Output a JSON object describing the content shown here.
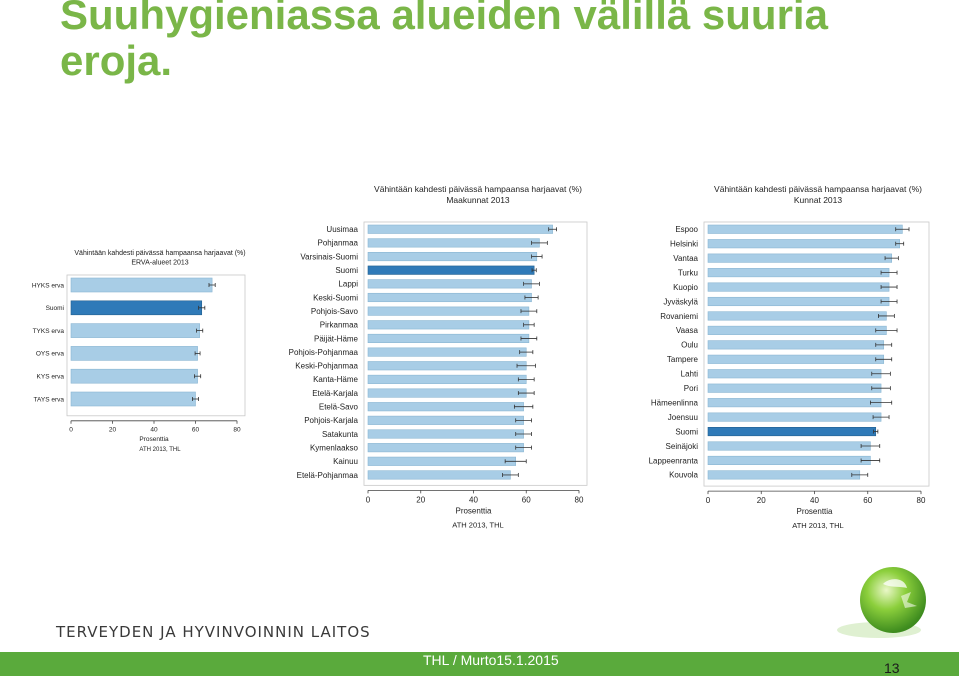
{
  "slide": {
    "title": "Suuhygieniassa alueiden välillä suuria eroja.",
    "org_name": "TERVEYDEN JA HYVINVOINNIN LAITOS",
    "footer": "THL / Murto15.1.2015",
    "page_number": "13"
  },
  "colors": {
    "title": "#7ab648",
    "bar": "#a8cde6",
    "bar_highlight": "#2f7ab8",
    "footer_bar": "#5aaa3c"
  },
  "chart_data": [
    {
      "type": "bar",
      "orientation": "horizontal",
      "title": "Vähintään kahdesti päivässä hampaansa harjaavat (%)",
      "subtitle": "ERVA-alueet 2013",
      "categories": [
        "HYKS erva",
        "Suomi",
        "TYKS erva",
        "OYS erva",
        "KYS erva",
        "TAYS erva"
      ],
      "values": [
        68,
        63,
        62,
        61,
        61,
        60
      ],
      "error": [
        1.5,
        1.5,
        1.5,
        1.2,
        1.5,
        1.5
      ],
      "highlight": "Suomi",
      "xlabel": "Prosenttia",
      "xlim": [
        0,
        80
      ],
      "xticks": [
        0,
        20,
        40,
        60,
        80
      ],
      "source": "ATH 2013, THL"
    },
    {
      "type": "bar",
      "orientation": "horizontal",
      "title": "Vähintään kahdesti päivässä hampaansa harjaavat (%)",
      "subtitle": "Maakunnat 2013",
      "categories": [
        "Uusimaa",
        "Pohjanmaa",
        "Varsinais-Suomi",
        "Suomi",
        "Lappi",
        "Keski-Suomi",
        "Pohjois-Savo",
        "Pirkanmaa",
        "Päijät-Häme",
        "Pohjois-Pohjanmaa",
        "Keski-Pohjanmaa",
        "Kanta-Häme",
        "Etelä-Karjala",
        "Etelä-Savo",
        "Pohjois-Karjala",
        "Satakunta",
        "Kymenlaakso",
        "Kainuu",
        "Etelä-Pohjanmaa"
      ],
      "values": [
        70,
        65,
        64,
        63,
        62,
        62,
        61,
        61,
        61,
        60,
        60,
        60,
        60,
        59,
        59,
        59,
        59,
        56,
        54
      ],
      "error": [
        1.5,
        3,
        2,
        0.8,
        3,
        2.5,
        3,
        2,
        3,
        2.5,
        3.5,
        3,
        3,
        3.5,
        3,
        3,
        3,
        4,
        3
      ],
      "highlight": "Suomi",
      "xlabel": "Prosenttia",
      "xlim": [
        0,
        80
      ],
      "xticks": [
        0,
        20,
        40,
        60,
        80
      ],
      "source": "ATH 2013, THL"
    },
    {
      "type": "bar",
      "orientation": "horizontal",
      "title": "Vähintään kahdesti päivässä hampaansa harjaavat (%)",
      "subtitle": "Kunnat 2013",
      "categories": [
        "Espoo",
        "Helsinki",
        "Vantaa",
        "Turku",
        "Kuopio",
        "Jyväskylä",
        "Rovaniemi",
        "Vaasa",
        "Oulu",
        "Tampere",
        "Lahti",
        "Pori",
        "Hämeenlinna",
        "Joensuu",
        "Suomi",
        "Seinäjoki",
        "Lappeenranta",
        "Kouvola"
      ],
      "values": [
        73,
        72,
        69,
        68,
        68,
        68,
        67,
        67,
        66,
        66,
        65,
        65,
        65,
        65,
        63,
        61,
        61,
        57
      ],
      "error": [
        2.5,
        1.5,
        2.5,
        3,
        3,
        3,
        3,
        4,
        3,
        3,
        3.5,
        3.5,
        4,
        3,
        0.8,
        3.5,
        3.5,
        3
      ],
      "highlight": "Suomi",
      "xlabel": "Prosenttia",
      "xlim": [
        0,
        80
      ],
      "xticks": [
        0,
        20,
        40,
        60,
        80
      ],
      "source": "ATH 2013, THL"
    }
  ]
}
